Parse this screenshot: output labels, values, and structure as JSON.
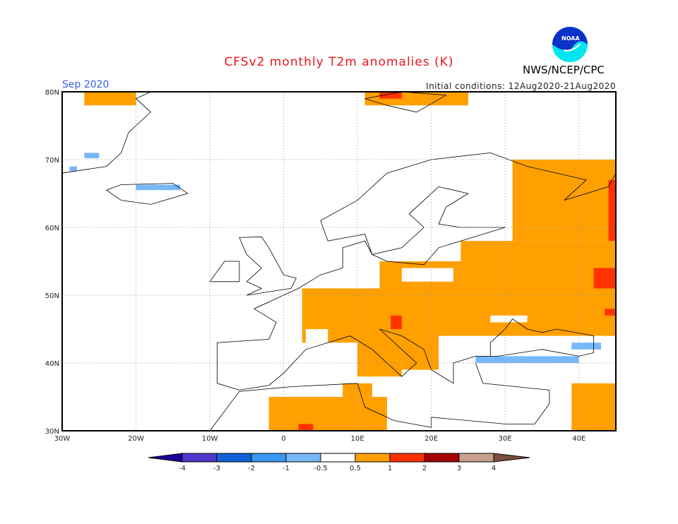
{
  "header": {
    "title": "CFSv2 monthly T2m anomalies (K)",
    "period": "Sep 2020",
    "initial_conditions": "Initial conditions: 12Aug2020-21Aug2020",
    "org": "NWS/NCEP/CPC",
    "logo_text": "NOAA"
  },
  "map": {
    "lon_range": [
      -30,
      45
    ],
    "lat_range": [
      30,
      80
    ],
    "grid": true,
    "lat_labels": [
      {
        "v": 80,
        "t": "80N"
      },
      {
        "v": 70,
        "t": "70N"
      },
      {
        "v": 60,
        "t": "60N"
      },
      {
        "v": 50,
        "t": "50N"
      },
      {
        "v": 40,
        "t": "40N"
      },
      {
        "v": 30,
        "t": "30N"
      }
    ],
    "lon_labels": [
      {
        "v": -30,
        "t": "30W"
      },
      {
        "v": -20,
        "t": "20W"
      },
      {
        "v": -10,
        "t": "10W"
      },
      {
        "v": 0,
        "t": "0"
      },
      {
        "v": 10,
        "t": "10E"
      },
      {
        "v": 20,
        "t": "20E"
      },
      {
        "v": 30,
        "t": "30E"
      },
      {
        "v": 40,
        "t": "40E"
      }
    ],
    "anomaly_regions": [
      {
        "c": "0.5-1",
        "b": [
          31,
          58,
          45,
          70
        ]
      },
      {
        "c": "0.5-1",
        "b": [
          24,
          44,
          45,
          58
        ]
      },
      {
        "c": "0.5-1",
        "b": [
          13,
          44,
          24,
          55
        ]
      },
      {
        "c": "0.5-1",
        "b": [
          2.5,
          43,
          13,
          51
        ]
      },
      {
        "c": "0.5-1",
        "b": [
          10,
          38,
          16,
          44
        ]
      },
      {
        "c": "0.5-1",
        "b": [
          16,
          39,
          21,
          45
        ]
      },
      {
        "c": "0.5-1",
        "b": [
          -2,
          30,
          14,
          35
        ]
      },
      {
        "c": "0.5-1",
        "b": [
          8,
          35,
          12,
          37
        ]
      },
      {
        "c": "0.5-1",
        "b": [
          39,
          30,
          45,
          37
        ]
      },
      {
        "c": "0.5-1",
        "b": [
          -27,
          78,
          -20,
          80
        ]
      },
      {
        "c": "0.5-1",
        "b": [
          11,
          78,
          25,
          80
        ]
      },
      {
        "c": "-0.5-0.5",
        "b": [
          16,
          52,
          23,
          54
        ]
      },
      {
        "c": "-0.5-0.5",
        "b": [
          3,
          43,
          6,
          45
        ]
      },
      {
        "c": "-0.5-0.5",
        "b": [
          28,
          46,
          33,
          47
        ]
      },
      {
        "c": "1-2",
        "b": [
          44,
          58,
          45,
          67
        ]
      },
      {
        "c": "1-2",
        "b": [
          42,
          51,
          45,
          54
        ]
      },
      {
        "c": "1-2",
        "b": [
          43.5,
          47,
          45,
          48
        ]
      },
      {
        "c": "1-2",
        "b": [
          14.5,
          45,
          16,
          47
        ]
      },
      {
        "c": "1-2",
        "b": [
          13,
          79,
          16,
          80
        ]
      },
      {
        "c": "1-2",
        "b": [
          2,
          30,
          4,
          31
        ]
      },
      {
        "c": "-1--0.5",
        "b": [
          -20,
          65.5,
          -14,
          66.3
        ]
      },
      {
        "c": "-1--0.5",
        "b": [
          26,
          40,
          40,
          41
        ]
      },
      {
        "c": "-1--0.5",
        "b": [
          39,
          42,
          43,
          43
        ]
      },
      {
        "c": "-1--0.5",
        "b": [
          -29,
          68.3,
          -28,
          69
        ]
      },
      {
        "c": "-1--0.5",
        "b": [
          -27,
          70.2,
          -25,
          71
        ]
      }
    ],
    "coastlines": [
      [
        [
          -6,
          36
        ],
        [
          -9,
          37
        ],
        [
          -9,
          43
        ],
        [
          -2,
          43.5
        ],
        [
          -1,
          46
        ],
        [
          -4,
          48
        ],
        [
          2,
          51
        ],
        [
          5,
          53
        ],
        [
          8,
          54
        ],
        [
          8,
          57
        ],
        [
          11,
          58
        ],
        [
          12,
          56
        ],
        [
          14,
          55
        ],
        [
          19,
          54.5
        ],
        [
          21,
          57
        ],
        [
          24,
          58
        ],
        [
          30,
          60
        ],
        [
          24,
          60
        ],
        [
          21,
          60.5
        ],
        [
          22,
          63
        ],
        [
          25,
          65
        ],
        [
          21,
          66
        ],
        [
          17,
          62
        ],
        [
          19,
          60
        ],
        [
          16,
          57
        ],
        [
          12,
          56
        ],
        [
          11,
          59
        ],
        [
          6,
          58
        ],
        [
          5,
          61
        ],
        [
          10,
          64
        ],
        [
          14,
          68
        ],
        [
          20,
          70
        ],
        [
          28,
          71
        ],
        [
          33,
          69
        ],
        [
          41,
          67
        ],
        [
          38,
          64
        ],
        [
          44,
          66
        ],
        [
          45,
          68
        ]
      ],
      [
        [
          -6,
          36
        ],
        [
          -2,
          36.7
        ],
        [
          0,
          38.5
        ],
        [
          3,
          42
        ],
        [
          6,
          43
        ],
        [
          9,
          44
        ],
        [
          12,
          42
        ],
        [
          16,
          38
        ],
        [
          18,
          40
        ],
        [
          13,
          45
        ],
        [
          16,
          44
        ],
        [
          19,
          42
        ],
        [
          20,
          39
        ],
        [
          23,
          37
        ],
        [
          23,
          40
        ],
        [
          26,
          41
        ],
        [
          29,
          41
        ],
        [
          35,
          42
        ],
        [
          40,
          41
        ],
        [
          42,
          41.5
        ],
        [
          42,
          44
        ],
        [
          37,
          45
        ],
        [
          35,
          44.5
        ],
        [
          33,
          45
        ],
        [
          31,
          46.5
        ],
        [
          30,
          45
        ],
        [
          28,
          43
        ],
        [
          28,
          41
        ]
      ],
      [
        [
          26,
          40
        ],
        [
          27,
          37
        ],
        [
          36,
          36
        ],
        [
          36,
          34
        ],
        [
          34,
          31
        ],
        [
          30,
          31
        ],
        [
          20,
          32
        ],
        [
          20,
          30.5
        ],
        [
          15,
          31.5
        ],
        [
          11,
          33.5
        ],
        [
          10,
          37
        ],
        [
          1,
          36.5
        ],
        [
          -6,
          35.8
        ],
        [
          -10,
          30
        ]
      ],
      [
        [
          -5,
          50
        ],
        [
          -3,
          51
        ],
        [
          -5,
          52
        ],
        [
          -3,
          54
        ],
        [
          -5,
          56
        ],
        [
          -6,
          58.5
        ],
        [
          -3,
          58.6
        ],
        [
          -2,
          57
        ],
        [
          0,
          53
        ],
        [
          1.7,
          52.5
        ],
        [
          1,
          51
        ],
        [
          -5,
          50
        ]
      ],
      [
        [
          -10,
          52
        ],
        [
          -6,
          52
        ],
        [
          -6,
          55
        ],
        [
          -8,
          55
        ],
        [
          -10,
          52
        ]
      ],
      [
        [
          -22,
          64
        ],
        [
          -24,
          65.5
        ],
        [
          -22,
          66.3
        ],
        [
          -15,
          66.5
        ],
        [
          -13,
          65
        ],
        [
          -18,
          63.4
        ],
        [
          -22,
          64
        ]
      ],
      [
        [
          -30,
          68
        ],
        [
          -24,
          69
        ],
        [
          -22,
          71
        ],
        [
          -21,
          74
        ],
        [
          -18,
          77
        ],
        [
          -20,
          79
        ],
        [
          -18,
          80
        ]
      ],
      [
        [
          11,
          79
        ],
        [
          16,
          80
        ],
        [
          22,
          79.5
        ],
        [
          18,
          77
        ],
        [
          14,
          78
        ],
        [
          11,
          79
        ]
      ]
    ]
  },
  "colorbar": {
    "labels": [
      "-4",
      "-3",
      "-2",
      "-1",
      "-0.5",
      "0.5",
      "1",
      "2",
      "3",
      "4"
    ],
    "colors": [
      "#1a0099",
      "#4d38c8",
      "#1460d6",
      "#3898f0",
      "#78b8f8",
      "#ffffff",
      "#ffa000",
      "#ff3200",
      "#a50000",
      "#c8a090",
      "#7a5040"
    ]
  },
  "colors": {
    "0.5-1": "#ffa000",
    "1-2": "#ff3200",
    "-0.5-0.5": "#ffffff",
    "-1--0.5": "#78b8f8"
  }
}
